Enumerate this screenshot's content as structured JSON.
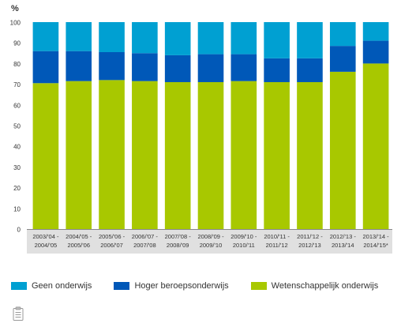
{
  "chart_data": {
    "type": "bar",
    "stacked": true,
    "ylabel": "%",
    "ylim": [
      0,
      100
    ],
    "yticks": [
      0,
      10,
      20,
      30,
      40,
      50,
      60,
      70,
      80,
      90,
      100
    ],
    "grid": false,
    "legend_position": "bottom",
    "categories": [
      [
        "2003/'04 -",
        "2004/'05"
      ],
      [
        "2004/'05 -",
        "2005/'06"
      ],
      [
        "2005/'06 -",
        "2006/'07"
      ],
      [
        "2006/'07 -",
        "2007/'08"
      ],
      [
        "2007/'08 -",
        "2008/'09"
      ],
      [
        "2008/'09 -",
        "2009/'10"
      ],
      [
        "2009/'10 -",
        "2010/'11"
      ],
      [
        "2010/'11 -",
        "2011/'12"
      ],
      [
        "2011/'12 -",
        "2012/'13"
      ],
      [
        "2012/'13 -",
        "2013/'14"
      ],
      [
        "2013/'14 -",
        "2014/'15*"
      ]
    ],
    "series": [
      {
        "name": "Wetenschappelijk onderwijs",
        "color": "#a8c800",
        "values": [
          70.5,
          71.5,
          72,
          71.5,
          71,
          71,
          71.5,
          71,
          71,
          76,
          80
        ]
      },
      {
        "name": "Hoger beroepsonderwijs",
        "color": "#0058b8",
        "values": [
          15.5,
          14.5,
          13.5,
          13.5,
          13,
          13.5,
          13,
          11.5,
          11.5,
          12.5,
          11
        ]
      },
      {
        "name": "Geen onderwijs",
        "color": "#00a0d2",
        "values": [
          14,
          14,
          14.5,
          15,
          16,
          15.5,
          15.5,
          17.5,
          17.5,
          11.5,
          9
        ]
      }
    ],
    "legend_order": [
      "Geen onderwijs",
      "Hoger beroepsonderwijs",
      "Wetenschappelijk onderwijs"
    ]
  },
  "icons": {
    "clipboard": "clipboard-icon"
  },
  "colors": {
    "category_band": "#e0e0e0",
    "axis": "#888888"
  }
}
